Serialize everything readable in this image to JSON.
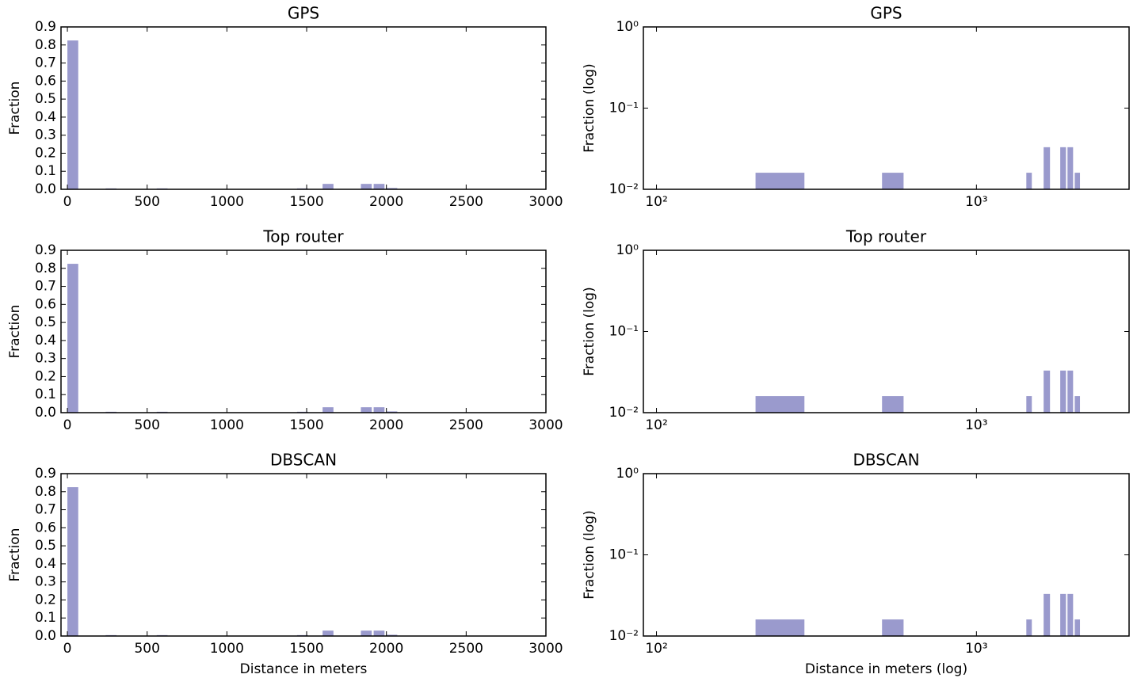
{
  "chart_data": [
    {
      "type": "histogram",
      "title": "GPS",
      "ylabel": "Fraction",
      "color": "#9a9acd",
      "bins": [
        0,
        80,
        160,
        240,
        320,
        400,
        480,
        560,
        640,
        720,
        800,
        880,
        960,
        1040,
        1120,
        1200,
        1280,
        1360,
        1440,
        1520,
        1600,
        1680,
        1760,
        1840,
        1920,
        2000,
        2080
      ],
      "values": [
        0.825,
        0,
        0,
        0.005,
        0,
        0,
        0,
        0.005,
        0,
        0,
        0,
        0,
        0,
        0,
        0,
        0,
        0,
        0,
        0.005,
        0,
        0.03,
        0,
        0,
        0.03,
        0.03,
        0.007
      ],
      "xlim": [
        -40,
        3000
      ],
      "ylim": [
        0,
        0.9
      ],
      "xticks": [
        0,
        500,
        1000,
        1500,
        2000,
        2500,
        3000
      ],
      "yticks": [
        {
          "value": 0,
          "label": "0.0"
        },
        0.1,
        0.2,
        0.3,
        0.4,
        0.5,
        0.6,
        0.7,
        0.8,
        0.9
      ]
    },
    {
      "type": "histogram",
      "title": "GPS",
      "ylabel": "Fraction (log)",
      "color": "#9a9acd",
      "xscale": "log",
      "yscale": "log",
      "bins": [
        204,
        290,
        507,
        592,
        1432,
        1490,
        1622,
        1698,
        1828,
        1905,
        1926,
        2005,
        2029,
        2107
      ],
      "values": [
        0.016,
        0,
        0.016,
        0,
        0.016,
        0,
        0.033,
        0,
        0.033,
        0,
        0.033,
        0,
        0.016
      ],
      "xlim": [
        91,
        3000
      ],
      "ylim": [
        0.01,
        1
      ],
      "xticks": [
        {
          "value": 100,
          "label": "10²"
        },
        {
          "value": 1000,
          "label": "10³"
        }
      ],
      "yticks": [
        {
          "value": 0.01,
          "label": "10⁻²"
        },
        {
          "value": 0.1,
          "label": "10⁻¹"
        },
        {
          "value": 1,
          "label": "10⁰"
        }
      ]
    },
    {
      "type": "histogram",
      "title": "Top router",
      "ylabel": "Fraction",
      "color": "#9a9acd",
      "bins": [
        0,
        80,
        160,
        240,
        320,
        400,
        480,
        560,
        640,
        720,
        800,
        880,
        960,
        1040,
        1120,
        1200,
        1280,
        1360,
        1440,
        1520,
        1600,
        1680,
        1760,
        1840,
        1920,
        2000,
        2080
      ],
      "values": [
        0.825,
        0,
        0,
        0.005,
        0,
        0,
        0,
        0.005,
        0,
        0,
        0,
        0,
        0,
        0,
        0,
        0,
        0,
        0,
        0.005,
        0,
        0.03,
        0,
        0,
        0.03,
        0.03,
        0.007
      ],
      "xlim": [
        -40,
        3000
      ],
      "ylim": [
        0,
        0.9
      ],
      "xticks": [
        0,
        500,
        1000,
        1500,
        2000,
        2500,
        3000
      ],
      "yticks": [
        {
          "value": 0,
          "label": "0.0"
        },
        0.1,
        0.2,
        0.3,
        0.4,
        0.5,
        0.6,
        0.7,
        0.8,
        0.9
      ]
    },
    {
      "type": "histogram",
      "title": "Top router",
      "ylabel": "Fraction (log)",
      "color": "#9a9acd",
      "xscale": "log",
      "yscale": "log",
      "bins": [
        204,
        290,
        507,
        592,
        1432,
        1490,
        1622,
        1698,
        1828,
        1905,
        1926,
        2005,
        2029,
        2107
      ],
      "values": [
        0.016,
        0,
        0.016,
        0,
        0.016,
        0,
        0.033,
        0,
        0.033,
        0,
        0.033,
        0,
        0.016
      ],
      "xlim": [
        91,
        3000
      ],
      "ylim": [
        0.01,
        1
      ],
      "xticks": [
        {
          "value": 100,
          "label": "10²"
        },
        {
          "value": 1000,
          "label": "10³"
        }
      ],
      "yticks": [
        {
          "value": 0.01,
          "label": "10⁻²"
        },
        {
          "value": 0.1,
          "label": "10⁻¹"
        },
        {
          "value": 1,
          "label": "10⁰"
        }
      ]
    },
    {
      "type": "histogram",
      "title": "DBSCAN",
      "ylabel": "Fraction",
      "xlabel": "Distance in meters",
      "color": "#9a9acd",
      "bins": [
        0,
        80,
        160,
        240,
        320,
        400,
        480,
        560,
        640,
        720,
        800,
        880,
        960,
        1040,
        1120,
        1200,
        1280,
        1360,
        1440,
        1520,
        1600,
        1680,
        1760,
        1840,
        1920,
        2000,
        2080
      ],
      "values": [
        0.825,
        0,
        0,
        0.005,
        0,
        0,
        0,
        0.005,
        0,
        0,
        0,
        0,
        0,
        0,
        0,
        0,
        0,
        0,
        0.005,
        0,
        0.03,
        0,
        0,
        0.03,
        0.03,
        0.007
      ],
      "xlim": [
        -40,
        3000
      ],
      "ylim": [
        0,
        0.9
      ],
      "xticks": [
        0,
        500,
        1000,
        1500,
        2000,
        2500,
        3000
      ],
      "yticks": [
        {
          "value": 0,
          "label": "0.0"
        },
        0.1,
        0.2,
        0.3,
        0.4,
        0.5,
        0.6,
        0.7,
        0.8,
        0.9
      ]
    },
    {
      "type": "histogram",
      "title": "DBSCAN",
      "ylabel": "Fraction (log)",
      "xlabel": "Distance in meters (log)",
      "color": "#9a9acd",
      "xscale": "log",
      "yscale": "log",
      "bins": [
        204,
        290,
        507,
        592,
        1432,
        1490,
        1622,
        1698,
        1828,
        1905,
        1926,
        2005,
        2029,
        2107
      ],
      "values": [
        0.016,
        0,
        0.016,
        0,
        0.016,
        0,
        0.033,
        0,
        0.033,
        0,
        0.033,
        0,
        0.016
      ],
      "xlim": [
        91,
        3000
      ],
      "ylim": [
        0.01,
        1
      ],
      "xticks": [
        {
          "value": 100,
          "label": "10²"
        },
        {
          "value": 1000,
          "label": "10³"
        }
      ],
      "yticks": [
        {
          "value": 0.01,
          "label": "10⁻²"
        },
        {
          "value": 0.1,
          "label": "10⁻¹"
        },
        {
          "value": 1,
          "label": "10⁰"
        }
      ]
    }
  ]
}
